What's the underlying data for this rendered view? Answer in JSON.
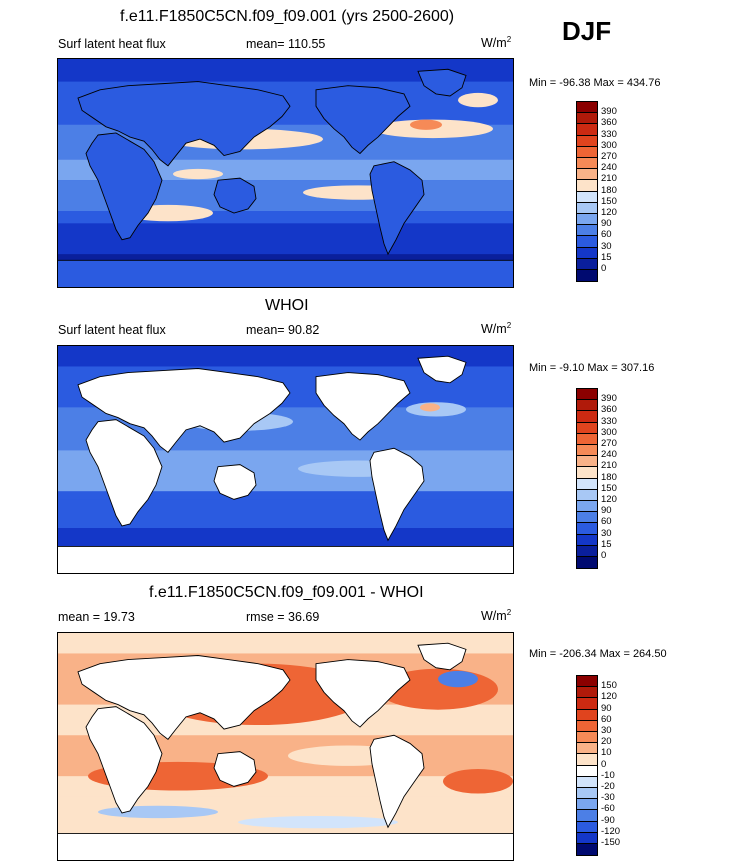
{
  "season": "DJF",
  "panels": [
    {
      "title": "f.e11.F1850C5CN.f09_f09.001 (yrs 2500-2600)",
      "left_label": "Surf latent heat flux",
      "center_label": "mean= 110.55",
      "units": "W/m",
      "units_sup": "2",
      "minmax": "Min = -96.38 Max = 434.76",
      "colorbar_ticks": [
        "390",
        "360",
        "330",
        "300",
        "270",
        "240",
        "210",
        "180",
        "150",
        "120",
        "90",
        "60",
        "30",
        "15",
        "0"
      ],
      "palette": "sequential"
    },
    {
      "title": "WHOI",
      "left_label": "Surf latent heat flux",
      "center_label": "mean=  90.82",
      "units": "W/m",
      "units_sup": "2",
      "minmax": "Min =  -9.10 Max = 307.16",
      "colorbar_ticks": [
        "390",
        "360",
        "330",
        "300",
        "270",
        "240",
        "210",
        "180",
        "150",
        "120",
        "90",
        "60",
        "30",
        "15",
        "0"
      ],
      "palette": "sequential"
    },
    {
      "title": "f.e11.F1850C5CN.f09_f09.001 - WHOI",
      "left_label": "mean =  19.73",
      "center_label": "rmse =  36.69",
      "units": "W/m",
      "units_sup": "2",
      "minmax": "Min = -206.34 Max = 264.50",
      "colorbar_ticks": [
        "150",
        "120",
        "90",
        "60",
        "30",
        "20",
        "10",
        "0",
        "-10",
        "-20",
        "-30",
        "-60",
        "-90",
        "-120",
        "-150"
      ],
      "palette": "diverging"
    }
  ],
  "colors": {
    "sequential": [
      "#8b0000",
      "#b01a0a",
      "#cc2a12",
      "#e0441e",
      "#ee6535",
      "#f68a57",
      "#f9b288",
      "#fde3c9",
      "#d2e4fb",
      "#a8c8f5",
      "#7aa6ef",
      "#4c7fe6",
      "#2b5be0",
      "#1437c8",
      "#0a1f9c",
      "#000a70"
    ],
    "diverging": [
      "#8b0000",
      "#b01a0a",
      "#cc2a12",
      "#e0441e",
      "#ee6535",
      "#f68a57",
      "#f9b288",
      "#fde3c9",
      "#ffffff",
      "#d2e4fb",
      "#a8c8f5",
      "#7aa6ef",
      "#4c7fe6",
      "#2b5be0",
      "#1437c8",
      "#000a70"
    ]
  }
}
